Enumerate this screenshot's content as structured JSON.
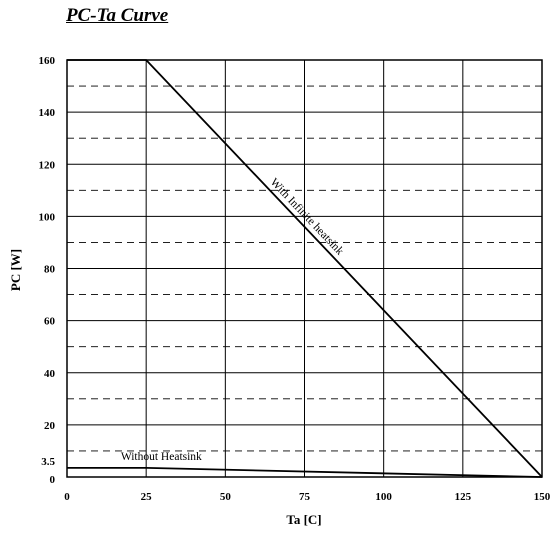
{
  "title": "PC-Ta Curve",
  "chart_data": {
    "type": "line",
    "title": "PC-Ta Curve",
    "xlabel": "Ta [C]",
    "ylabel": "PC [W]",
    "xlim": [
      0,
      150
    ],
    "ylim": [
      0,
      160
    ],
    "x_ticks": [
      0,
      25,
      50,
      75,
      100,
      125,
      150
    ],
    "y_ticks": [
      0,
      3.5,
      20,
      40,
      60,
      80,
      100,
      120,
      140,
      160
    ],
    "grid": true,
    "grid_style": "solid vertical and major horizontal lines, dashed minor horizontal lines every 10 W",
    "series": [
      {
        "name": "With Infinite heatsink",
        "x": [
          0,
          25,
          150
        ],
        "y": [
          160,
          160,
          0
        ]
      },
      {
        "name": "Without Heatsink",
        "x": [
          0,
          25,
          150
        ],
        "y": [
          3.5,
          3.5,
          0
        ]
      }
    ],
    "annotations": [
      {
        "text": "With Infinite heatsink",
        "x": 75,
        "y": 99
      },
      {
        "text": "Without Heatsink",
        "x": 17,
        "y": 6.5
      }
    ],
    "colors": {
      "line": "#000000",
      "grid": "#000000"
    }
  }
}
